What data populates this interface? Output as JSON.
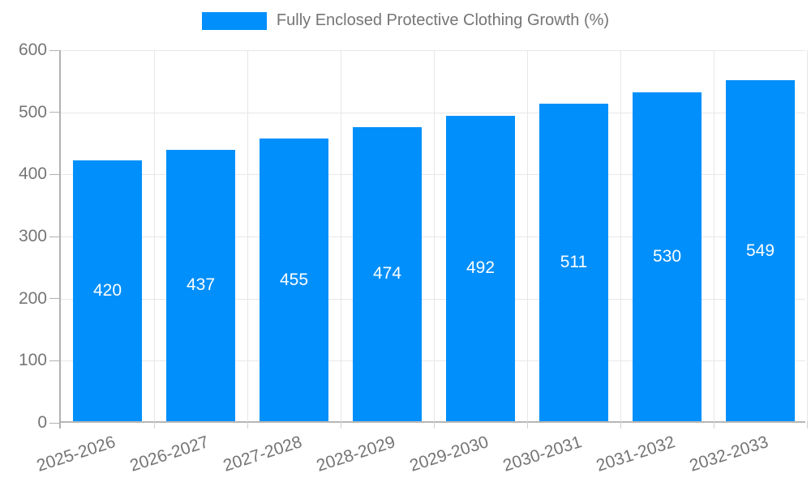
{
  "chart_data": {
    "type": "bar",
    "title": "Fully Enclosed Protective Clothing Growth (%)",
    "categories": [
      "2025-2026",
      "2026-2027",
      "2027-2028",
      "2028-2029",
      "2029-2030",
      "2030-2031",
      "2031-2032",
      "2032-2033"
    ],
    "series": [
      {
        "name": "Fully Enclosed Protective Clothing Growth (%)",
        "values": [
          420,
          437,
          455,
          474,
          492,
          511,
          530,
          549
        ]
      }
    ],
    "xlabel": "",
    "ylabel": "",
    "ylim": [
      0,
      600
    ],
    "y_ticks": [
      0,
      100,
      200,
      300,
      400,
      500,
      600
    ],
    "grid": true,
    "legend_position": "top-center",
    "bar_color": "#008FFB",
    "value_label_color": "#FFFFFF",
    "axis_text_color": "#757575",
    "gridline_color": "#E7E7E7",
    "axis_line_color": "#B1B1B1"
  },
  "legend": {
    "label": "Fully Enclosed Protective Clothing Growth (%)",
    "swatch_color": "#008FFB"
  }
}
